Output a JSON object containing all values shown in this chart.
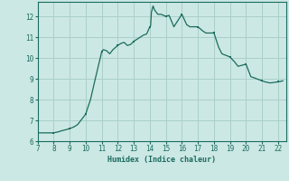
{
  "xlabel": "Humidex (Indice chaleur)",
  "ylabel": "",
  "background_color": "#cce8e4",
  "grid_color": "#aacfca",
  "line_color": "#1a6b5f",
  "marker_color": "#1a6b5f",
  "xlim": [
    7,
    22.5
  ],
  "ylim": [
    6,
    12.7
  ],
  "xticks": [
    7,
    8,
    9,
    10,
    11,
    12,
    13,
    14,
    15,
    16,
    17,
    18,
    19,
    20,
    21,
    22
  ],
  "yticks": [
    6,
    7,
    8,
    9,
    10,
    11,
    12
  ],
  "x": [
    7,
    7.3,
    7.5,
    8,
    8.3,
    8.5,
    9,
    9.3,
    9.5,
    10,
    10.3,
    10.6,
    11,
    11.1,
    11.3,
    11.5,
    11.7,
    12,
    12.2,
    12.4,
    12.6,
    12.8,
    13,
    13.2,
    13.4,
    13.6,
    13.8,
    14.0,
    14.05,
    14.1,
    14.2,
    14.3,
    14.5,
    14.7,
    15,
    15.2,
    15.5,
    16,
    16.3,
    16.5,
    17,
    17.3,
    17.5,
    18,
    18.3,
    18.5,
    19,
    19.3,
    19.5,
    20,
    20.3,
    20.5,
    21,
    21.2,
    21.5,
    21.7,
    22,
    22.3
  ],
  "y": [
    6.4,
    6.4,
    6.4,
    6.4,
    6.45,
    6.5,
    6.6,
    6.7,
    6.8,
    7.3,
    8.0,
    9.0,
    10.3,
    10.4,
    10.35,
    10.2,
    10.4,
    10.6,
    10.7,
    10.75,
    10.6,
    10.65,
    10.8,
    10.9,
    11.0,
    11.1,
    11.15,
    11.5,
    11.55,
    12.2,
    12.5,
    12.3,
    12.1,
    12.1,
    12.0,
    12.05,
    11.5,
    12.1,
    11.6,
    11.5,
    11.5,
    11.3,
    11.2,
    11.2,
    10.5,
    10.2,
    10.05,
    9.8,
    9.6,
    9.7,
    9.1,
    9.05,
    8.9,
    8.85,
    8.8,
    8.82,
    8.85,
    8.9
  ],
  "marker_x": [
    7,
    8,
    9,
    10,
    11,
    12,
    13,
    14,
    15,
    16,
    17,
    18,
    19,
    20,
    21,
    22
  ],
  "marker_y": [
    6.4,
    6.4,
    6.6,
    7.3,
    10.3,
    10.6,
    10.8,
    11.5,
    12.0,
    12.1,
    11.5,
    11.2,
    10.05,
    9.7,
    8.9,
    8.85
  ]
}
